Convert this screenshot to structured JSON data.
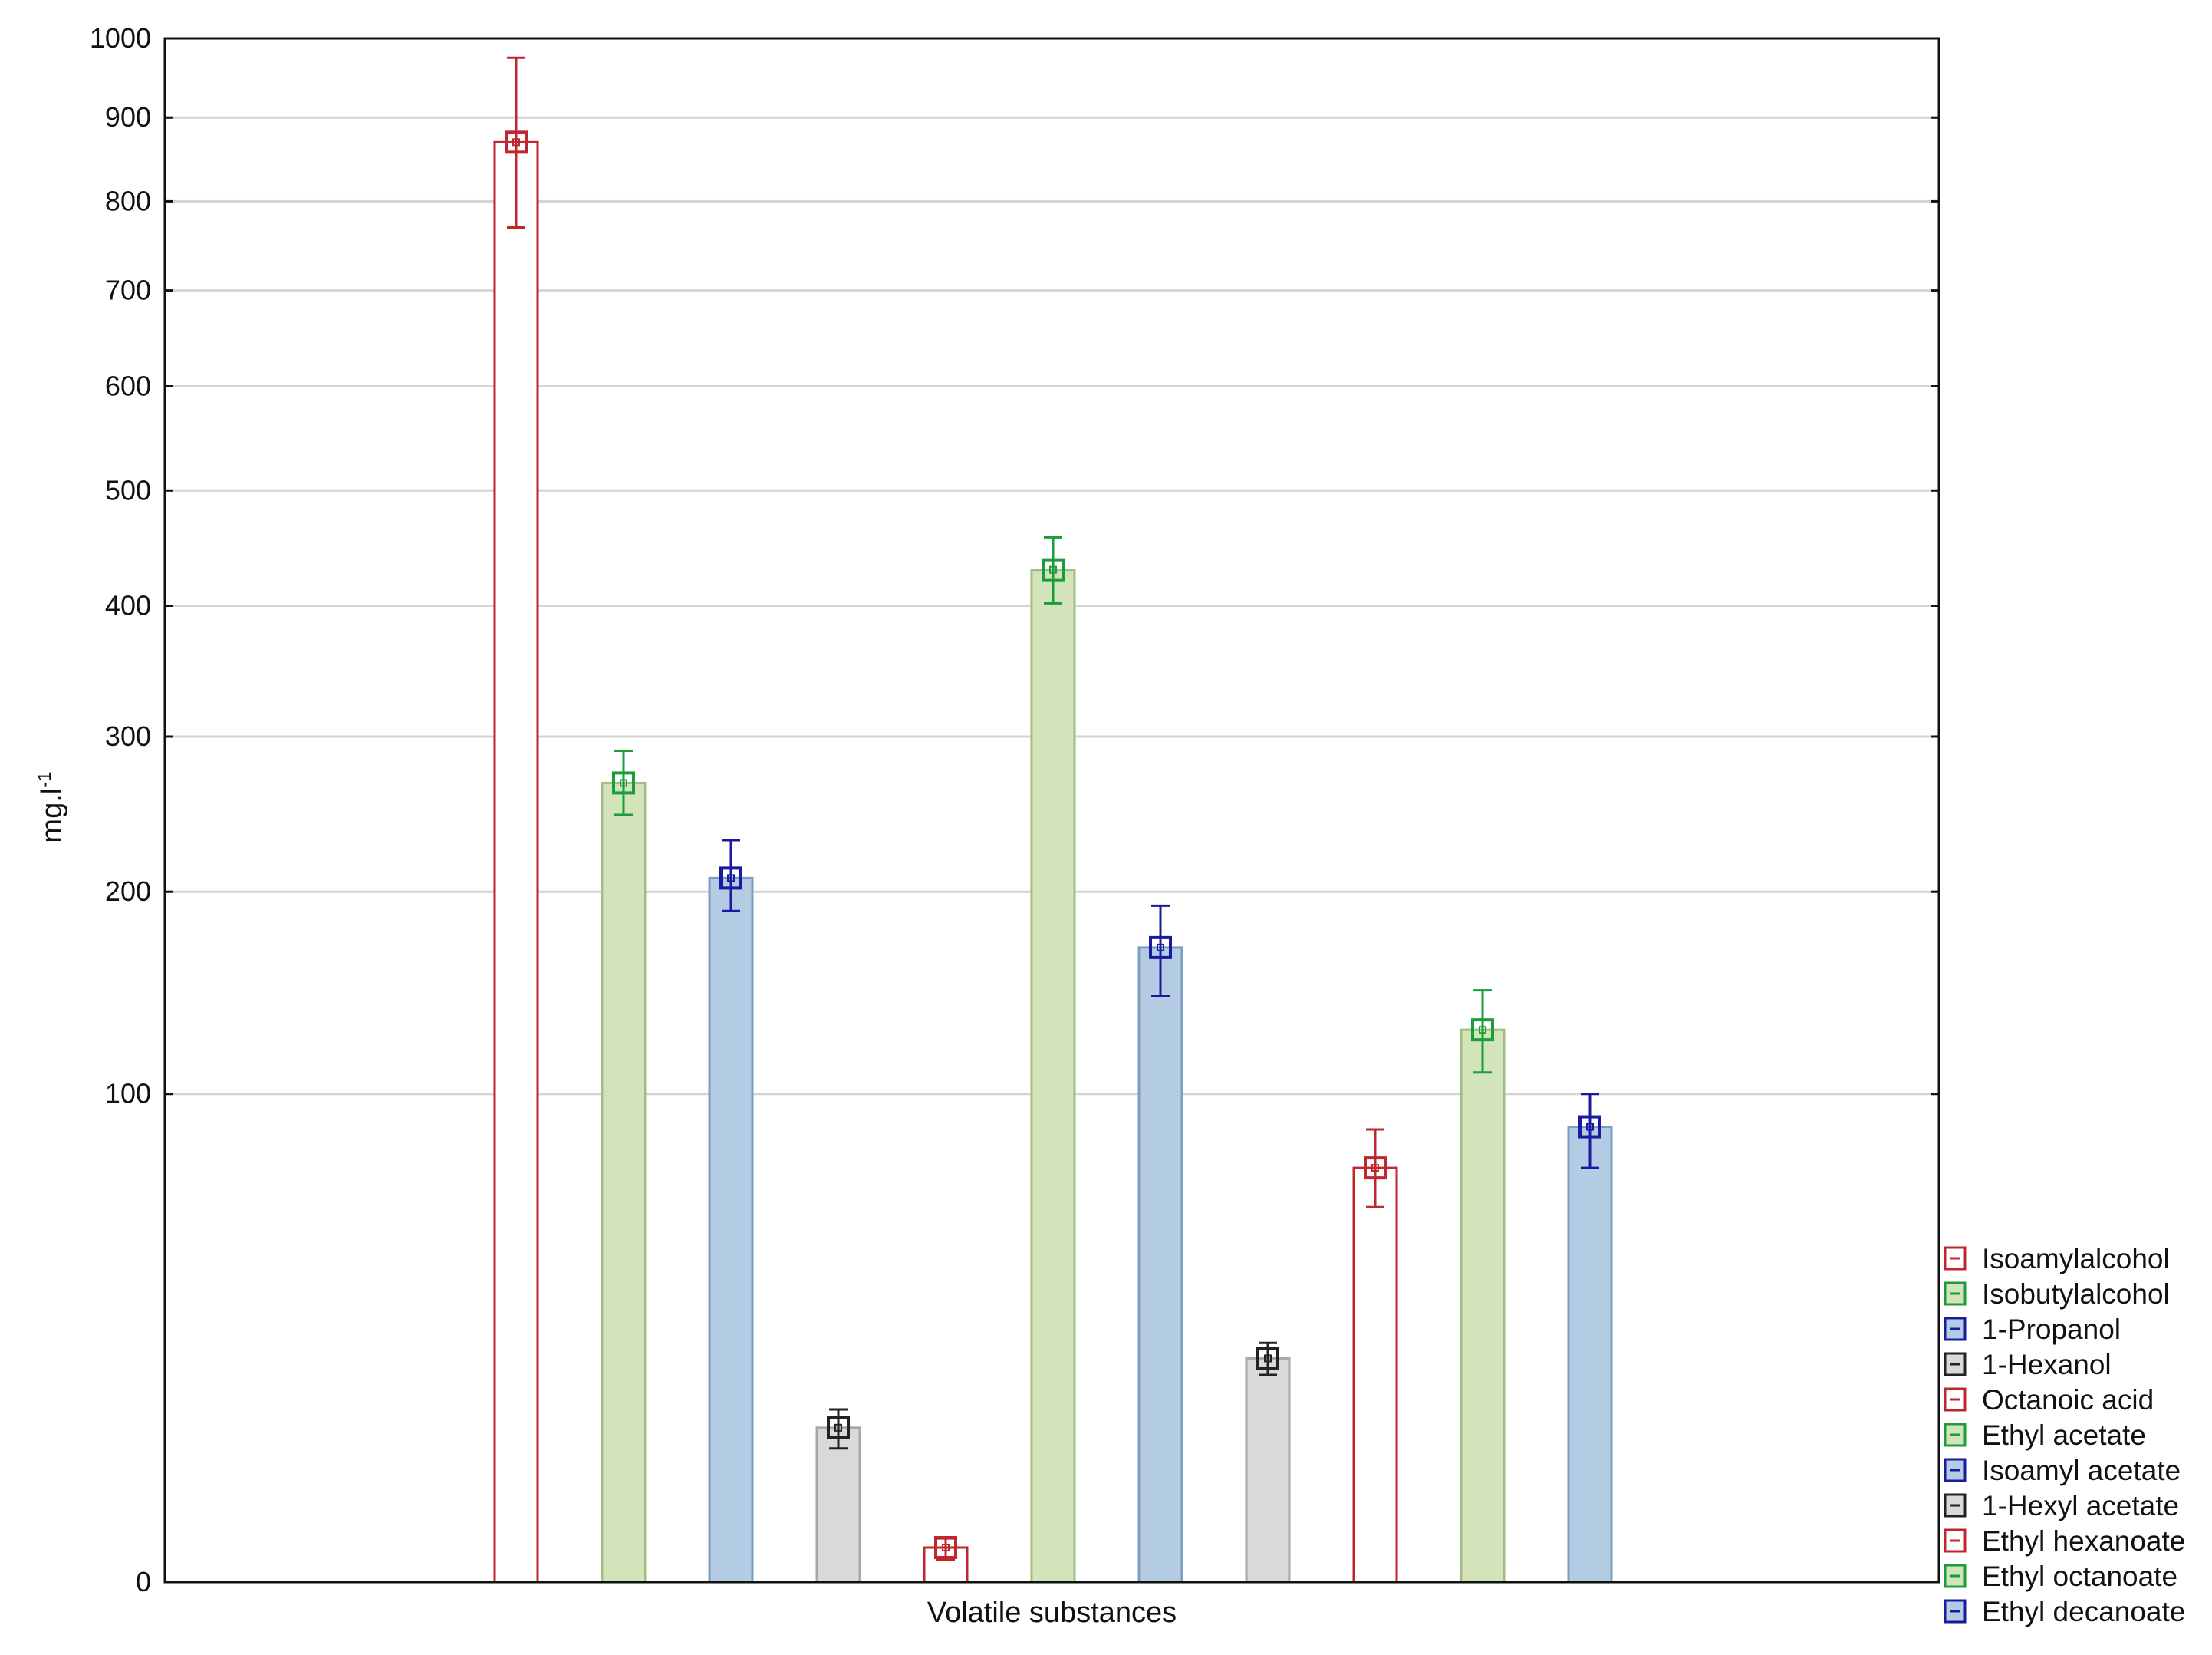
{
  "chart_data": {
    "type": "bar",
    "xlabel": "Volatile substances",
    "ylabel": "mg.l",
    "ylabel_sup": "-1",
    "scale": "sqrt",
    "ylim": [
      0,
      1000
    ],
    "yticks": [
      0,
      100,
      200,
      300,
      400,
      500,
      600,
      700,
      800,
      900,
      1000
    ],
    "grid": true,
    "legend_position": "bottom-right",
    "series": [
      {
        "name": "Isoamylalcohol",
        "value": 870,
        "err_low": 770,
        "err_high": 975,
        "fill": "#ffffff",
        "stroke": "#c0262d",
        "marker": "#c0262d"
      },
      {
        "name": "Isobutylalcohol",
        "value": 268,
        "err_low": 247,
        "err_high": 290,
        "fill": "#d3e4bb",
        "stroke": "#9fbd84",
        "marker": "#1a9e3a"
      },
      {
        "name": "1-Propanol",
        "value": 208,
        "err_low": 189,
        "err_high": 231,
        "fill": "#b3cce4",
        "stroke": "#7f9dbf",
        "marker": "#1a1aa0"
      },
      {
        "name": "1-Hexanol",
        "value": 10,
        "err_low": 7.5,
        "err_high": 12.5,
        "fill": "#d9d9d9",
        "stroke": "#a8a8a8",
        "marker": "#222222"
      },
      {
        "name": "Octanoic acid",
        "value": 0.5,
        "err_low": 0.2,
        "err_high": 0.8,
        "fill": "#ffffff",
        "stroke": "#c0262d",
        "marker": "#c0262d"
      },
      {
        "name": "Ethyl acetate",
        "value": 430,
        "err_low": 402,
        "err_high": 458,
        "fill": "#d3e4bb",
        "stroke": "#9fbd84",
        "marker": "#1a9e3a"
      },
      {
        "name": "Isoamyl acetate",
        "value": 169,
        "err_low": 144,
        "err_high": 192,
        "fill": "#b3cce4",
        "stroke": "#7f9dbf",
        "marker": "#1a1aa0"
      },
      {
        "name": "1-Hexyl acetate",
        "value": 21,
        "err_low": 18,
        "err_high": 24,
        "fill": "#d9d9d9",
        "stroke": "#a8a8a8",
        "marker": "#222222"
      },
      {
        "name": "Ethyl hexanoate",
        "value": 72,
        "err_low": 59,
        "err_high": 86,
        "fill": "#ffffff",
        "stroke": "#c0262d",
        "marker": "#c0262d"
      },
      {
        "name": "Ethyl octanoate",
        "value": 128,
        "err_low": 109,
        "err_high": 147,
        "fill": "#d3e4bb",
        "stroke": "#9fbd84",
        "marker": "#1a9e3a"
      },
      {
        "name": "Ethyl decanoate",
        "value": 87,
        "err_low": 72,
        "err_high": 100,
        "fill": "#b3cce4",
        "stroke": "#7f9dbf",
        "marker": "#1a1aa0"
      }
    ]
  }
}
